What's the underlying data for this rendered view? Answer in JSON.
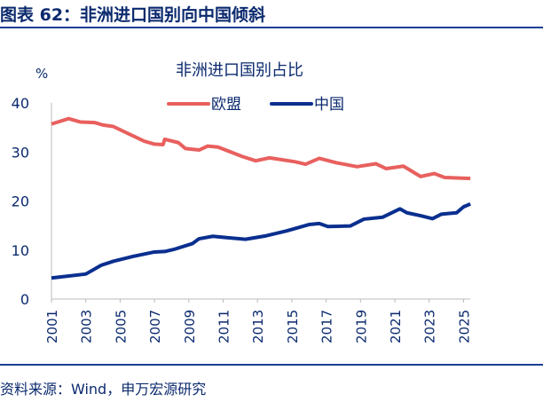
{
  "figure_title": "图表 62：非洲进口国别向中国倾斜",
  "source": "资料来源：Wind，申万宏源研究",
  "chart_data": {
    "type": "line",
    "title": "非洲进口国别占比",
    "ylabel": "%",
    "ylim": [
      0,
      40
    ],
    "yticks": [
      0,
      10,
      20,
      30,
      40
    ],
    "xticks": [
      "2001",
      "2003",
      "2005",
      "2007",
      "2009",
      "2011",
      "2013",
      "2015",
      "2017",
      "2019",
      "2021",
      "2023",
      "2025"
    ],
    "xlim": [
      2001,
      2025.4
    ],
    "legend": "top",
    "grid": false,
    "series": [
      {
        "name": "欧盟",
        "color": "#E8605E",
        "x": [
          2001,
          2002,
          2002.7,
          2003.5,
          2004,
          2004.6,
          2005.5,
          2006.4,
          2007,
          2007.5,
          2007.6,
          2008.4,
          2008.8,
          2009.6,
          2010.1,
          2010.7,
          2012.1,
          2012.9,
          2013.7,
          2015.2,
          2015.8,
          2016.6,
          2017.6,
          2018.8,
          2019.9,
          2020.5,
          2021.5,
          2022.5,
          2023.3,
          2023.9,
          2025.4
        ],
        "y": [
          35.7,
          36.8,
          36.1,
          36,
          35.5,
          35.2,
          33.7,
          32.2,
          31.6,
          31.5,
          32.6,
          31.9,
          30.7,
          30.4,
          31.2,
          31,
          29.1,
          28.2,
          28.8,
          28,
          27.5,
          28.7,
          27.8,
          27,
          27.6,
          26.6,
          27.1,
          25,
          25.6,
          24.8,
          24.6
        ]
      },
      {
        "name": "中国",
        "color": "#0A2F8F",
        "x": [
          2001,
          2003,
          2003.9,
          2004.6,
          2005.75,
          2007,
          2007.6,
          2008.2,
          2009.2,
          2009.6,
          2010.4,
          2011,
          2012.3,
          2013.5,
          2014.7,
          2016,
          2016.6,
          2017.1,
          2018.4,
          2019.2,
          2020.3,
          2021.3,
          2021.7,
          2022.5,
          2023.2,
          2023.7,
          2024.6,
          2025,
          2025.4
        ],
        "y": [
          4.3,
          5.1,
          6.9,
          7.7,
          8.7,
          9.6,
          9.7,
          10.2,
          11.3,
          12.3,
          12.8,
          12.6,
          12.2,
          12.9,
          13.9,
          15.2,
          15.4,
          14.8,
          14.9,
          16.3,
          16.7,
          18.4,
          17.6,
          17,
          16.4,
          17.3,
          17.6,
          18.8,
          19.4
        ]
      }
    ]
  }
}
